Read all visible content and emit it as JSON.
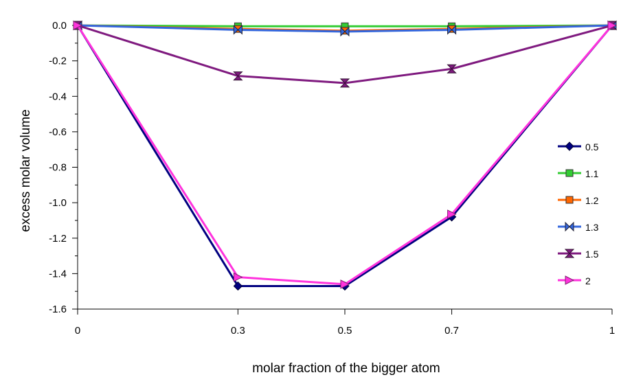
{
  "chart_data": {
    "type": "line",
    "title": "",
    "xlabel": "molar fraction of the bigger atom",
    "ylabel": "excess molar volume",
    "x": [
      0,
      0.3,
      0.5,
      0.7,
      1
    ],
    "x_tick_labels": [
      "0",
      "0.3",
      "0.5",
      "0.7",
      "1"
    ],
    "xlim": [
      0,
      1
    ],
    "ylim": [
      -1.6,
      0.0
    ],
    "y_ticks": [
      0.0,
      -0.2,
      -0.4,
      -0.6,
      -0.8,
      -1.0,
      -1.2,
      -1.4,
      -1.6
    ],
    "y_tick_labels": [
      "0.0",
      "-0.2",
      "-0.4",
      "-0.6",
      "-0.8",
      "-1.0",
      "-1.2",
      "-1.4",
      "-1.6"
    ],
    "grid": false,
    "legend_position": "right",
    "series": [
      {
        "name": "0.5",
        "color": "#000080",
        "marker": "diamond",
        "values": [
          0.0,
          -1.47,
          -1.47,
          -1.08,
          0.0
        ]
      },
      {
        "name": "1.1",
        "color": "#33cc33",
        "marker": "square",
        "values": [
          0.0,
          -0.005,
          -0.005,
          -0.005,
          0.0
        ]
      },
      {
        "name": "1.2",
        "color": "#ff6600",
        "marker": "square",
        "values": [
          0.0,
          -0.02,
          -0.03,
          -0.02,
          0.0
        ]
      },
      {
        "name": "1.3",
        "color": "#3366dd",
        "marker": "bowtie",
        "values": [
          0.0,
          -0.025,
          -0.035,
          -0.025,
          0.0
        ]
      },
      {
        "name": "1.5",
        "color": "#7f1a7f",
        "marker": "hourglass",
        "values": [
          0.0,
          -0.285,
          -0.325,
          -0.245,
          0.0
        ]
      },
      {
        "name": "2",
        "color": "#ff33dd",
        "marker": "triangle-right",
        "values": [
          0.0,
          -1.42,
          -1.46,
          -1.065,
          0.0
        ]
      }
    ]
  }
}
